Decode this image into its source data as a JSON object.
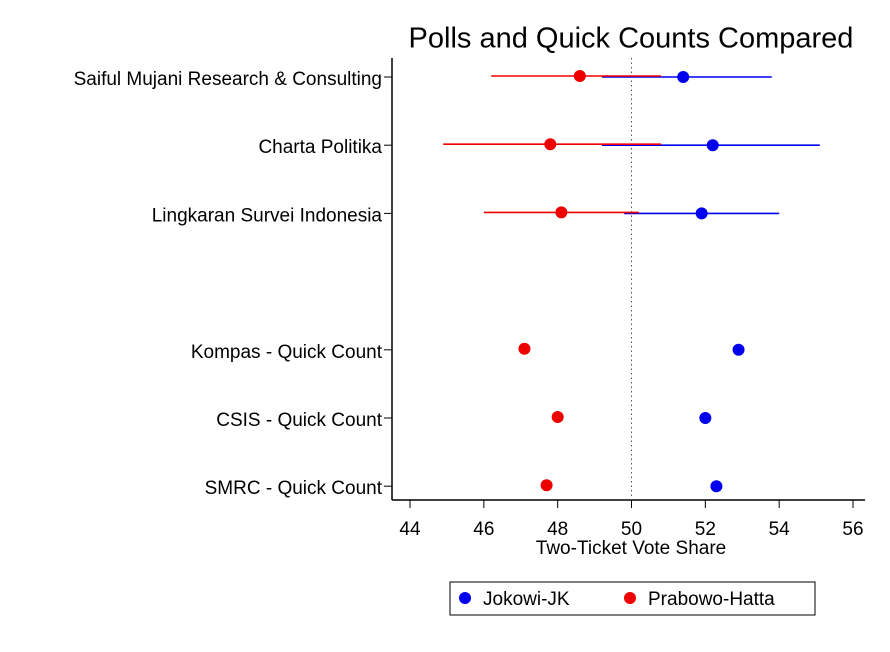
{
  "chart_data": {
    "type": "dot_errorbar",
    "title": "Polls and Quick Counts Compared",
    "xlabel": "Two-Ticket Vote Share",
    "categories": [
      "Saiful Mujani Research & Consulting",
      "Charta Politika",
      "Lingkaran Survei Indonesia",
      null,
      "Kompas - Quick Count",
      "CSIS - Quick Count",
      "SMRC - Quick Count"
    ],
    "series": [
      {
        "name": "Jokowi-JK",
        "color": "#0000ee",
        "values": [
          51.4,
          52.2,
          51.9,
          null,
          52.9,
          52.0,
          52.3
        ],
        "lower": [
          49.2,
          49.2,
          49.8,
          null,
          null,
          null,
          null
        ],
        "upper": [
          53.8,
          55.1,
          54.0,
          null,
          null,
          null,
          null
        ]
      },
      {
        "name": "Prabowo-Hatta",
        "color": "#ee0000",
        "values": [
          48.6,
          47.8,
          48.1,
          null,
          47.1,
          48.0,
          47.7
        ],
        "lower": [
          46.2,
          44.9,
          46.0,
          null,
          null,
          null,
          null
        ],
        "upper": [
          50.8,
          50.8,
          50.2,
          null,
          null,
          null,
          null
        ]
      }
    ],
    "xlim": [
      44,
      56
    ],
    "xticks": [
      44,
      46,
      48,
      50,
      52,
      54,
      56
    ],
    "reference_line": 50,
    "legend": "bottom"
  }
}
